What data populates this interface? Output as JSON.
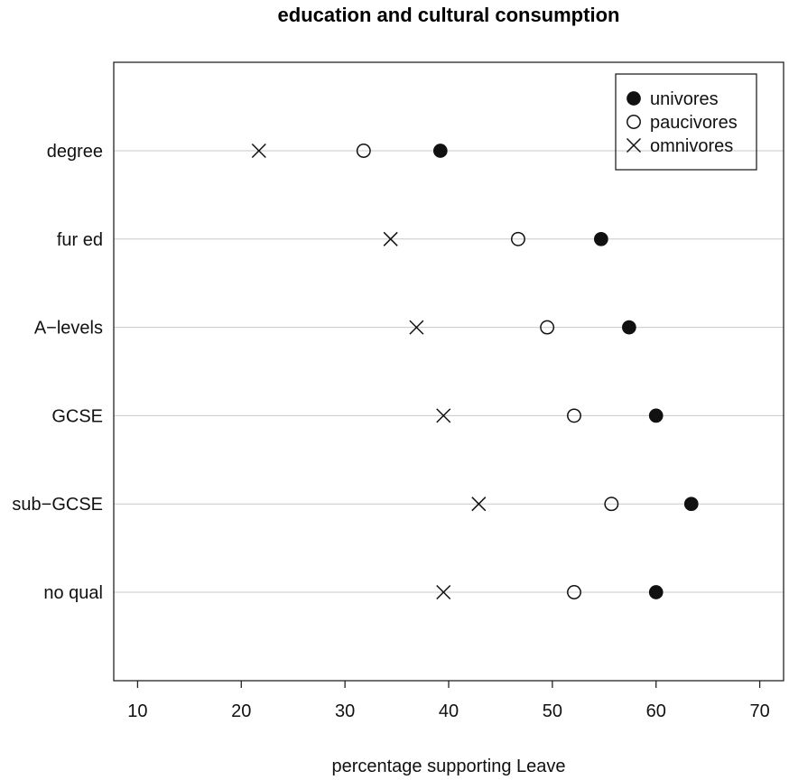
{
  "chart_data": {
    "type": "scatter",
    "title": "education and cultural consumption",
    "xlabel": "percentage supporting Leave",
    "ylabel": "",
    "xlim": [
      7.7,
      72.3
    ],
    "xticks": [
      10,
      20,
      30,
      40,
      50,
      60,
      70
    ],
    "categories": [
      "degree",
      "fur ed",
      "A−levels",
      "GCSE",
      "sub−GCSE",
      "no qual"
    ],
    "grid": "horizontal",
    "legend_position": "top-right",
    "series": [
      {
        "name": "univores",
        "marker": "filled-circle",
        "values": [
          39.2,
          54.7,
          57.4,
          60.0,
          63.4,
          60.0
        ]
      },
      {
        "name": "paucivores",
        "marker": "open-circle",
        "values": [
          31.8,
          46.7,
          49.5,
          52.1,
          55.7,
          52.1
        ]
      },
      {
        "name": "omnivores",
        "marker": "cross",
        "values": [
          21.7,
          34.4,
          36.9,
          39.5,
          42.9,
          39.5
        ]
      }
    ]
  },
  "colors": {
    "marker": "#111111",
    "grid": "#c8c8c8",
    "frame": "#222222"
  }
}
